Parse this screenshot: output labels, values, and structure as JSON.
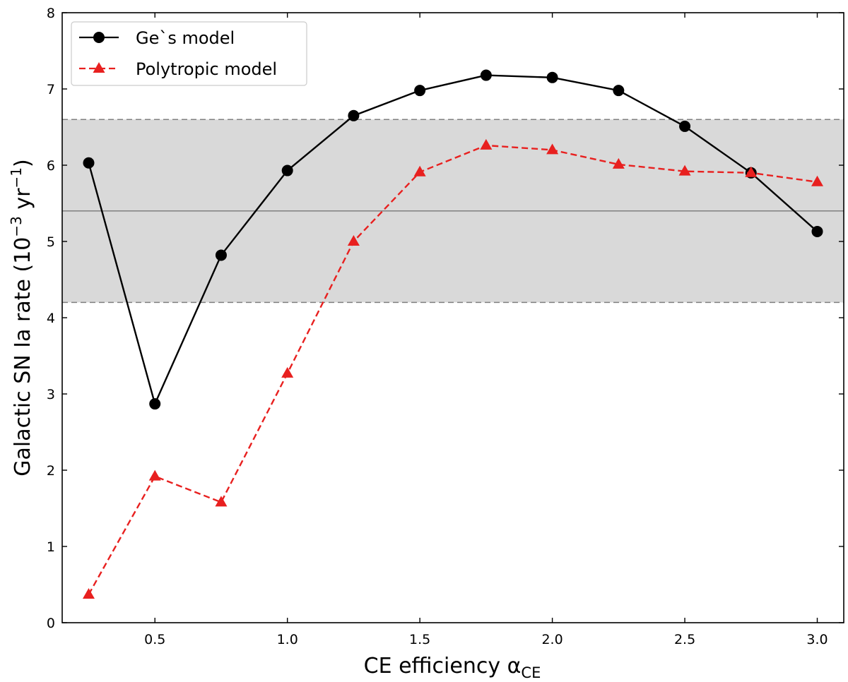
{
  "chart_data": {
    "type": "line",
    "xlabel": "CE efficiency α",
    "xlabel_sub": "CE",
    "ylabel": "Galactic SN Ia rate (10",
    "ylabel_exp1": "−3",
    "ylabel_mid": " yr",
    "ylabel_exp2": "−1",
    "ylabel_end": ")",
    "xlim": [
      0.15,
      3.1
    ],
    "ylim": [
      0,
      8
    ],
    "xticks": [
      0.5,
      1.0,
      1.5,
      2.0,
      2.5,
      3.0
    ],
    "xtick_labels": [
      "0.5",
      "1.0",
      "1.5",
      "2.0",
      "2.5",
      "3.0"
    ],
    "yticks": [
      0,
      1,
      2,
      3,
      4,
      5,
      6,
      7,
      8
    ],
    "ytick_labels": [
      "0",
      "1",
      "2",
      "3",
      "4",
      "5",
      "6",
      "7",
      "8"
    ],
    "x": [
      0.25,
      0.5,
      0.75,
      1.0,
      1.25,
      1.5,
      1.75,
      2.0,
      2.25,
      2.5,
      2.75,
      3.0
    ],
    "series": [
      {
        "name": "Ge`s model",
        "color": "#000000",
        "style": "solid",
        "marker": "circle",
        "values": [
          6.03,
          2.87,
          4.82,
          5.93,
          6.65,
          6.98,
          7.18,
          7.15,
          6.98,
          6.51,
          5.9,
          5.13
        ]
      },
      {
        "name": "Polytropic model",
        "color": "#e8201f",
        "style": "dashed",
        "marker": "triangle",
        "values": [
          0.37,
          1.92,
          1.58,
          3.27,
          5.0,
          5.91,
          6.26,
          6.2,
          6.01,
          5.92,
          5.9,
          5.78
        ]
      }
    ],
    "reference_band": {
      "low": 4.2,
      "high": 6.6,
      "center": 5.4,
      "color": "#d9d9d9"
    },
    "legend_position": "top-left"
  }
}
